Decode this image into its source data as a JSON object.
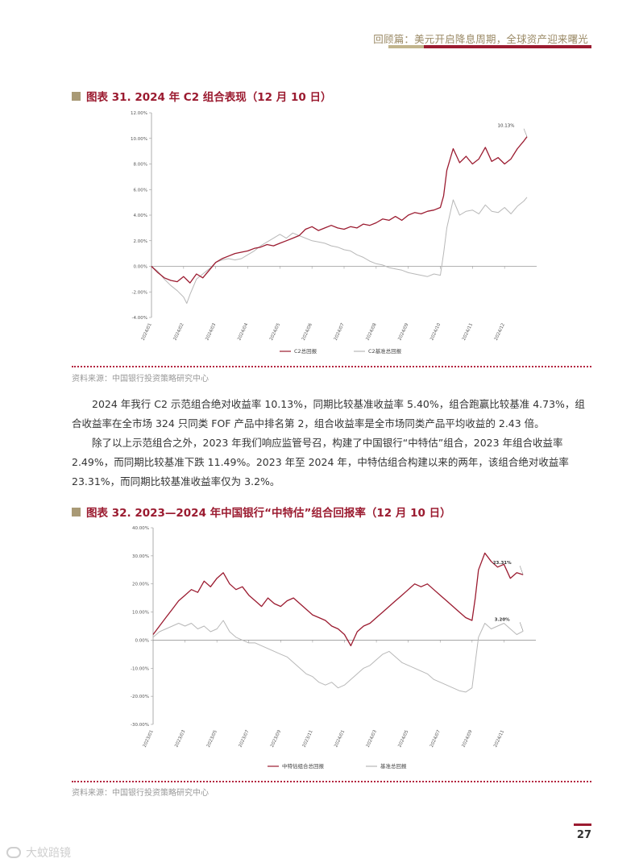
{
  "header": {
    "title": "回顾篇：美元开启降息周期，全球资产迎来曙光"
  },
  "figure31": {
    "title": "图表 31. 2024 年 C2 组合表现（12 月 10 日）",
    "source": "资料来源：中国银行投资策略研究中心",
    "annotation": "10.13%"
  },
  "figure32": {
    "title": "图表 32. 2023—2024 年中国银行“中特估”组合回报率（12 月 10 日）",
    "source": "资料来源：中国银行投资策略研究中心",
    "annotation1": "23.31%",
    "annotation2": "3.20%"
  },
  "body": {
    "para1": "2024 年我行 C2 示范组合绝对收益率 10.13%，同期比较基准收益率 5.40%，组合跑赢比较基准 4.73%，组合收益率在全市场 324 只同类 FOF 产品中排名第 2，组合收益率是全市场同类产品平均收益的 2.43 倍。",
    "para2": "除了以上示范组合之外，2023 年我们响应监管号召，构建了中国银行“中特估”组合，2023 年组合收益率 2.49%，而同期比较基准下跌 11.49%。2023 年至 2024 年，中特估组合构建以来的两年，该组合绝对收益率 23.31%，而同期比较基准收益率仅为 3.2%。"
  },
  "page": {
    "number": "27"
  },
  "watermark": {
    "text": "大蚊踣镜"
  },
  "colors": {
    "accent_red": "#9b1b30",
    "gold": "#a99a76",
    "benchmark_gray": "#b8b8b8"
  },
  "chart_data": [
    {
      "type": "line",
      "title": "",
      "y_ticks": [
        "12.00%",
        "10.00%",
        "8.00%",
        "6.00%",
        "4.00%",
        "2.00%",
        "0.00%",
        "-2.00%",
        "-4.00%"
      ],
      "ylim": [
        -4,
        12
      ],
      "x_ticks": [
        "2024/01",
        "2024/02",
        "2024/03",
        "2024/04",
        "2024/05",
        "2024/06",
        "2024/07",
        "2024/08",
        "2024/09",
        "2024/10",
        "2024/11",
        "2024/12"
      ],
      "series": [
        {
          "name": "C2总回报",
          "color": "#9b1b30",
          "points": [
            [
              0,
              0
            ],
            [
              0.2,
              -0.5
            ],
            [
              0.4,
              -0.9
            ],
            [
              0.6,
              -1.1
            ],
            [
              0.8,
              -1.2
            ],
            [
              1.0,
              -0.8
            ],
            [
              1.2,
              -1.3
            ],
            [
              1.4,
              -0.6
            ],
            [
              1.6,
              -0.9
            ],
            [
              1.8,
              -0.3
            ],
            [
              2.0,
              0.3
            ],
            [
              2.2,
              0.6
            ],
            [
              2.4,
              0.8
            ],
            [
              2.6,
              1.0
            ],
            [
              2.8,
              1.1
            ],
            [
              3.0,
              1.2
            ],
            [
              3.2,
              1.4
            ],
            [
              3.4,
              1.5
            ],
            [
              3.6,
              1.7
            ],
            [
              3.8,
              1.6
            ],
            [
              4.0,
              1.8
            ],
            [
              4.2,
              2.0
            ],
            [
              4.4,
              2.2
            ],
            [
              4.6,
              2.4
            ],
            [
              4.8,
              2.9
            ],
            [
              5.0,
              3.1
            ],
            [
              5.2,
              2.8
            ],
            [
              5.4,
              3.0
            ],
            [
              5.6,
              3.2
            ],
            [
              5.8,
              3.0
            ],
            [
              6.0,
              2.9
            ],
            [
              6.2,
              3.1
            ],
            [
              6.4,
              3.0
            ],
            [
              6.6,
              3.3
            ],
            [
              6.8,
              3.2
            ],
            [
              7.0,
              3.4
            ],
            [
              7.2,
              3.7
            ],
            [
              7.4,
              3.6
            ],
            [
              7.6,
              3.9
            ],
            [
              7.8,
              3.6
            ],
            [
              8.0,
              4.0
            ],
            [
              8.2,
              4.2
            ],
            [
              8.4,
              4.1
            ],
            [
              8.6,
              4.3
            ],
            [
              8.8,
              4.4
            ],
            [
              9.0,
              4.6
            ],
            [
              9.1,
              5.5
            ],
            [
              9.2,
              7.5
            ],
            [
              9.4,
              9.2
            ],
            [
              9.6,
              8.1
            ],
            [
              9.8,
              8.6
            ],
            [
              10.0,
              8.0
            ],
            [
              10.2,
              8.4
            ],
            [
              10.4,
              9.3
            ],
            [
              10.6,
              8.2
            ],
            [
              10.8,
              8.5
            ],
            [
              11.0,
              8.0
            ],
            [
              11.2,
              8.4
            ],
            [
              11.4,
              9.2
            ],
            [
              11.6,
              9.8
            ],
            [
              11.7,
              10.13
            ]
          ]
        },
        {
          "name": "C2基准总回报",
          "color": "#b8b8b8",
          "points": [
            [
              0,
              0
            ],
            [
              0.2,
              -0.4
            ],
            [
              0.4,
              -1.0
            ],
            [
              0.6,
              -1.5
            ],
            [
              0.8,
              -1.9
            ],
            [
              1.0,
              -2.4
            ],
            [
              1.1,
              -2.9
            ],
            [
              1.2,
              -2.2
            ],
            [
              1.4,
              -1.0
            ],
            [
              1.6,
              -0.6
            ],
            [
              1.8,
              -0.2
            ],
            [
              2.0,
              0.3
            ],
            [
              2.2,
              0.5
            ],
            [
              2.4,
              0.6
            ],
            [
              2.6,
              0.5
            ],
            [
              2.8,
              0.6
            ],
            [
              3.0,
              0.9
            ],
            [
              3.2,
              1.2
            ],
            [
              3.4,
              1.6
            ],
            [
              3.6,
              1.9
            ],
            [
              3.8,
              2.2
            ],
            [
              4.0,
              2.5
            ],
            [
              4.2,
              2.2
            ],
            [
              4.4,
              2.6
            ],
            [
              4.6,
              2.4
            ],
            [
              4.8,
              2.2
            ],
            [
              5.0,
              2.0
            ],
            [
              5.2,
              1.9
            ],
            [
              5.4,
              1.8
            ],
            [
              5.6,
              1.6
            ],
            [
              5.8,
              1.5
            ],
            [
              6.0,
              1.3
            ],
            [
              6.2,
              1.2
            ],
            [
              6.4,
              0.9
            ],
            [
              6.6,
              0.7
            ],
            [
              6.8,
              0.4
            ],
            [
              7.0,
              0.2
            ],
            [
              7.2,
              0.1
            ],
            [
              7.4,
              -0.1
            ],
            [
              7.6,
              -0.2
            ],
            [
              7.8,
              -0.3
            ],
            [
              8.0,
              -0.5
            ],
            [
              8.2,
              -0.6
            ],
            [
              8.4,
              -0.7
            ],
            [
              8.6,
              -0.8
            ],
            [
              8.8,
              -0.6
            ],
            [
              9.0,
              -0.7
            ],
            [
              9.1,
              1.0
            ],
            [
              9.2,
              3.0
            ],
            [
              9.4,
              5.2
            ],
            [
              9.6,
              4.0
            ],
            [
              9.8,
              4.3
            ],
            [
              10.0,
              4.4
            ],
            [
              10.2,
              4.1
            ],
            [
              10.4,
              4.8
            ],
            [
              10.6,
              4.3
            ],
            [
              10.8,
              4.2
            ],
            [
              11.0,
              4.6
            ],
            [
              11.2,
              4.1
            ],
            [
              11.4,
              4.7
            ],
            [
              11.6,
              5.1
            ],
            [
              11.7,
              5.4
            ]
          ]
        }
      ]
    },
    {
      "type": "line",
      "title": "",
      "y_ticks": [
        "40.00%",
        "30.00%",
        "20.00%",
        "10.00%",
        "0.00%",
        "-10.00%",
        "-20.00%",
        "-30.00%"
      ],
      "ylim": [
        -30,
        40
      ],
      "x_ticks": [
        "2023/01",
        "2023/03",
        "2023/05",
        "2023/07",
        "2023/09",
        "2023/11",
        "2024/01",
        "2024/03",
        "2024/05",
        "2024/07",
        "2024/09",
        "2024/11"
      ],
      "series": [
        {
          "name": "中特估组合总回报",
          "color": "#9b1b30",
          "points": [
            [
              0,
              2
            ],
            [
              0.2,
              5
            ],
            [
              0.4,
              8
            ],
            [
              0.6,
              11
            ],
            [
              0.8,
              14
            ],
            [
              1.0,
              16
            ],
            [
              1.2,
              18
            ],
            [
              1.4,
              17
            ],
            [
              1.6,
              21
            ],
            [
              1.8,
              19
            ],
            [
              2.0,
              22
            ],
            [
              2.2,
              24
            ],
            [
              2.4,
              20
            ],
            [
              2.6,
              18
            ],
            [
              2.8,
              19
            ],
            [
              3.0,
              16
            ],
            [
              3.2,
              14
            ],
            [
              3.4,
              12
            ],
            [
              3.6,
              15
            ],
            [
              3.8,
              13
            ],
            [
              4.0,
              12
            ],
            [
              4.2,
              14
            ],
            [
              4.4,
              15
            ],
            [
              4.6,
              13
            ],
            [
              4.8,
              11
            ],
            [
              5.0,
              9
            ],
            [
              5.2,
              8
            ],
            [
              5.4,
              7
            ],
            [
              5.6,
              5
            ],
            [
              5.8,
              4
            ],
            [
              6.0,
              2
            ],
            [
              6.2,
              -2
            ],
            [
              6.4,
              3
            ],
            [
              6.6,
              5
            ],
            [
              6.8,
              6
            ],
            [
              7.0,
              8
            ],
            [
              7.2,
              10
            ],
            [
              7.4,
              12
            ],
            [
              7.6,
              14
            ],
            [
              7.8,
              16
            ],
            [
              8.0,
              18
            ],
            [
              8.2,
              20
            ],
            [
              8.4,
              19
            ],
            [
              8.6,
              20
            ],
            [
              8.8,
              18
            ],
            [
              9.0,
              16
            ],
            [
              9.2,
              14
            ],
            [
              9.4,
              12
            ],
            [
              9.6,
              10
            ],
            [
              9.8,
              8
            ],
            [
              10.0,
              7
            ],
            [
              10.1,
              15
            ],
            [
              10.2,
              25
            ],
            [
              10.4,
              31
            ],
            [
              10.6,
              28
            ],
            [
              10.8,
              26
            ],
            [
              11.0,
              27
            ],
            [
              11.2,
              22
            ],
            [
              11.4,
              24
            ],
            [
              11.6,
              23.31
            ]
          ]
        },
        {
          "name": "基准总回报",
          "color": "#b8b8b8",
          "points": [
            [
              0,
              1
            ],
            [
              0.2,
              3
            ],
            [
              0.4,
              4
            ],
            [
              0.6,
              5
            ],
            [
              0.8,
              6
            ],
            [
              1.0,
              5
            ],
            [
              1.2,
              6
            ],
            [
              1.4,
              4
            ],
            [
              1.6,
              5
            ],
            [
              1.8,
              3
            ],
            [
              2.0,
              4
            ],
            [
              2.2,
              7
            ],
            [
              2.4,
              3
            ],
            [
              2.6,
              1
            ],
            [
              2.8,
              0
            ],
            [
              3.0,
              -1
            ],
            [
              3.2,
              -1
            ],
            [
              3.4,
              -2
            ],
            [
              3.6,
              -3
            ],
            [
              3.8,
              -4
            ],
            [
              4.0,
              -5
            ],
            [
              4.2,
              -6
            ],
            [
              4.4,
              -8
            ],
            [
              4.6,
              -10
            ],
            [
              4.8,
              -12
            ],
            [
              5.0,
              -13
            ],
            [
              5.2,
              -15
            ],
            [
              5.4,
              -16
            ],
            [
              5.6,
              -15
            ],
            [
              5.8,
              -17
            ],
            [
              6.0,
              -16
            ],
            [
              6.2,
              -14
            ],
            [
              6.4,
              -12
            ],
            [
              6.6,
              -10
            ],
            [
              6.8,
              -9
            ],
            [
              7.0,
              -7
            ],
            [
              7.2,
              -5
            ],
            [
              7.4,
              -4
            ],
            [
              7.6,
              -6
            ],
            [
              7.8,
              -8
            ],
            [
              8.0,
              -9
            ],
            [
              8.2,
              -10
            ],
            [
              8.4,
              -11
            ],
            [
              8.6,
              -12
            ],
            [
              8.8,
              -14
            ],
            [
              9.0,
              -15
            ],
            [
              9.2,
              -16
            ],
            [
              9.4,
              -17
            ],
            [
              9.6,
              -18
            ],
            [
              9.8,
              -18.5
            ],
            [
              10.0,
              -17
            ],
            [
              10.1,
              -8
            ],
            [
              10.2,
              1
            ],
            [
              10.4,
              6
            ],
            [
              10.6,
              4
            ],
            [
              10.8,
              5
            ],
            [
              11.0,
              6
            ],
            [
              11.2,
              4
            ],
            [
              11.4,
              2
            ],
            [
              11.6,
              3.2
            ]
          ]
        }
      ]
    }
  ]
}
